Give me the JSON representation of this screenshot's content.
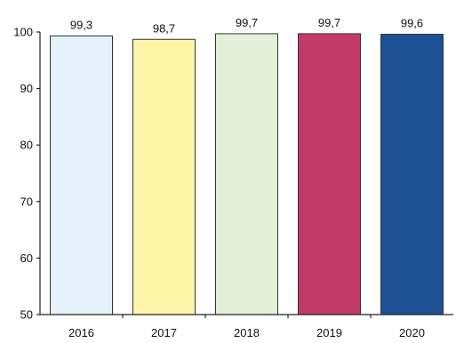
{
  "chart_data": {
    "type": "bar",
    "categories": [
      "2016",
      "2017",
      "2018",
      "2019",
      "2020"
    ],
    "values": [
      99.3,
      98.7,
      99.7,
      99.7,
      99.6
    ],
    "value_labels": [
      "99,3",
      "98,7",
      "99,7",
      "99,7",
      "99,6"
    ],
    "bar_colors": [
      "#e4f1f8",
      "#fdf6a8",
      "#e3efd6",
      "#c13a68",
      "#1d4f94"
    ],
    "ylim": [
      50,
      100
    ],
    "yticks": [
      50,
      60,
      70,
      80,
      90,
      100
    ],
    "title": "",
    "xlabel": "",
    "ylabel": "",
    "grid": false,
    "legend": "none"
  }
}
